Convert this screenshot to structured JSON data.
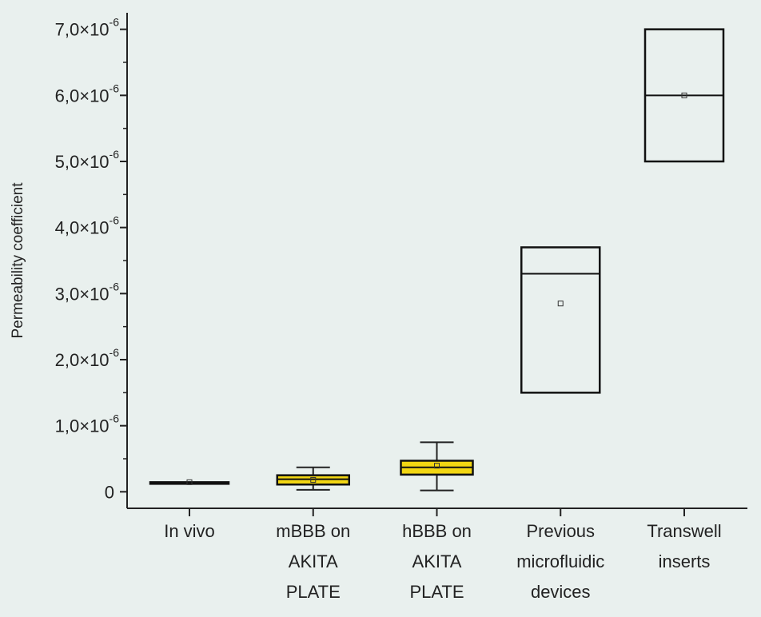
{
  "chart_data": {
    "type": "box",
    "title": "",
    "xlabel": "",
    "ylabel": "Permeability coefficient",
    "ylim": [
      -2.5e-07,
      7.25e-06
    ],
    "yticks": [
      {
        "value": 0,
        "label": "0"
      },
      {
        "value": 1e-06,
        "label": "1,0×10",
        "exp": "-6"
      },
      {
        "value": 2e-06,
        "label": "2,0×10",
        "exp": "-6"
      },
      {
        "value": 3e-06,
        "label": "3,0×10",
        "exp": "-6"
      },
      {
        "value": 4e-06,
        "label": "4,0×10",
        "exp": "-6"
      },
      {
        "value": 5e-06,
        "label": "5,0×10",
        "exp": "-6"
      },
      {
        "value": 6e-06,
        "label": "6,0×10",
        "exp": "-6"
      },
      {
        "value": 7e-06,
        "label": "7,0×10",
        "exp": "-6"
      }
    ],
    "categories": [
      {
        "label": [
          "In vivo"
        ],
        "whisker_low": null,
        "q1": 1.25e-07,
        "median": 1.35e-07,
        "q3": 1.45e-07,
        "whisker_high": null,
        "mean": 1.45e-07,
        "fill": "none"
      },
      {
        "label": [
          "mBBB on",
          "AKITA",
          "PLATE"
        ],
        "whisker_low": 3e-08,
        "q1": 1.1e-07,
        "median": 1.9e-07,
        "q3": 2.5e-07,
        "whisker_high": 3.7e-07,
        "mean": 1.8e-07,
        "fill": "#f2d613"
      },
      {
        "label": [
          "hBBB on",
          "AKITA",
          "PLATE"
        ],
        "whisker_low": 2e-08,
        "q1": 2.6e-07,
        "median": 3.7e-07,
        "q3": 4.7e-07,
        "whisker_high": 7.5e-07,
        "mean": 3.95e-07,
        "fill": "#f2d613"
      },
      {
        "label": [
          "Previous",
          "microfluidic",
          "devices"
        ],
        "whisker_low": null,
        "q1": 1.5e-06,
        "median": 3.3e-06,
        "q3": 3.7e-06,
        "whisker_high": null,
        "mean": 2.85e-06,
        "fill": "none"
      },
      {
        "label": [
          "Transwell",
          "inserts"
        ],
        "whisker_low": null,
        "q1": 5e-06,
        "median": 6e-06,
        "q3": 7e-06,
        "whisker_high": null,
        "mean": 6e-06,
        "fill": "none"
      }
    ],
    "grid": false,
    "legend": "none"
  }
}
